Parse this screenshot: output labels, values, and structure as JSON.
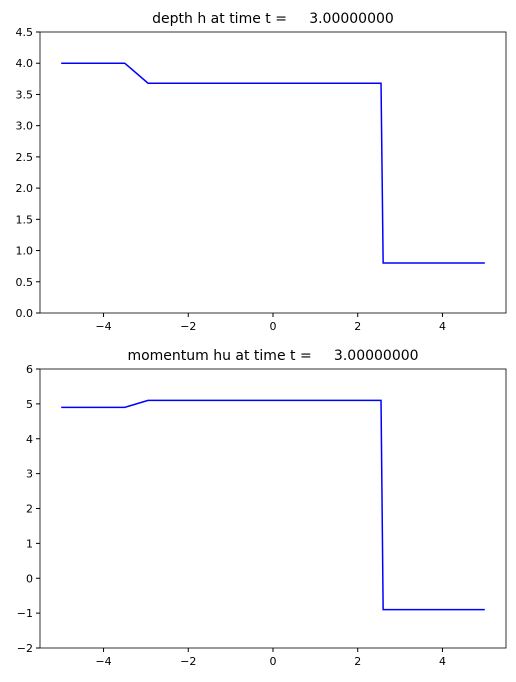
{
  "chart_data": [
    {
      "type": "line",
      "title": "depth h at time t =     3.00000000",
      "x": [
        -5,
        -3.5,
        -2.95,
        2.55,
        2.6,
        5
      ],
      "values": [
        4.0,
        4.0,
        3.68,
        3.68,
        0.8,
        0.8
      ],
      "color": "#0000ff",
      "xlim": [
        -5.5,
        5.5
      ],
      "xticks": [
        {
          "value": -4,
          "label": "−4"
        },
        {
          "value": -2,
          "label": "−2"
        },
        0,
        2,
        4
      ],
      "ylim": [
        0,
        4.5
      ],
      "yticks": [
        {
          "value": 0,
          "label": "0.0"
        },
        0.5,
        {
          "value": 1,
          "label": "1.0"
        },
        1.5,
        {
          "value": 2,
          "label": "2.0"
        },
        2.5,
        {
          "value": 3,
          "label": "3.0"
        },
        3.5,
        {
          "value": 4,
          "label": "4.0"
        },
        4.5
      ]
    },
    {
      "type": "line",
      "title": "momentum hu at time t =     3.00000000",
      "x": [
        -5,
        -3.5,
        -2.95,
        2.55,
        2.6,
        5
      ],
      "values": [
        4.9,
        4.9,
        5.1,
        5.1,
        -0.9,
        -0.9
      ],
      "color": "#0000ff",
      "xlim": [
        -5.5,
        5.5
      ],
      "xticks": [
        {
          "value": -4,
          "label": "−4"
        },
        {
          "value": -2,
          "label": "−2"
        },
        0,
        2,
        4
      ],
      "ylim": [
        -2,
        6
      ],
      "yticks": [
        {
          "value": -2,
          "label": "−2"
        },
        {
          "value": -1,
          "label": "−1"
        },
        0,
        1,
        2,
        3,
        4,
        5,
        6
      ]
    }
  ]
}
